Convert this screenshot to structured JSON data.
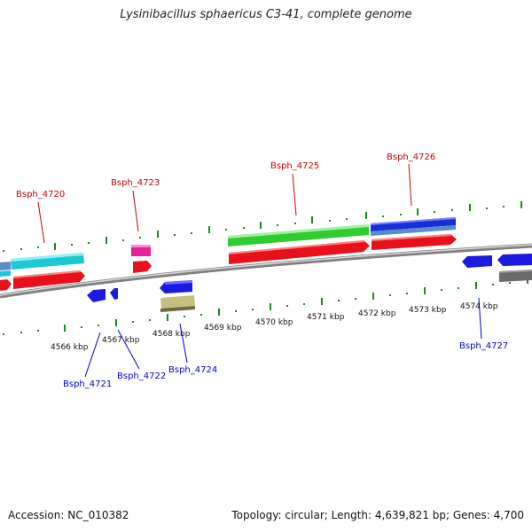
{
  "title": "Lysinibacillus sphaericus C3-41, complete genome",
  "accession": "Accession: NC_010382",
  "topology": "Topology: circular; Length: 4,639,821 bp; Genes: 4,700",
  "colors": {
    "cds_top_label": "#cc0000",
    "cds_bottom_label": "#0000cc",
    "backbone": "#888888",
    "tick": "#228b22"
  },
  "scale_labels": [
    "4566 kbp",
    "4567 kbp",
    "4568 kbp",
    "4569 kbp",
    "4570 kbp",
    "4571 kbp",
    "4572 kbp",
    "4573 kbp",
    "4574 kbp"
  ],
  "gene_labels_top": [
    "Bsph_4720",
    "Bsph_4723",
    "Bsph_4725",
    "Bsph_4726"
  ],
  "gene_labels_bottom": [
    "Bsph_4721",
    "Bsph_4722",
    "Bsph_4724",
    "Bsph_4727"
  ]
}
